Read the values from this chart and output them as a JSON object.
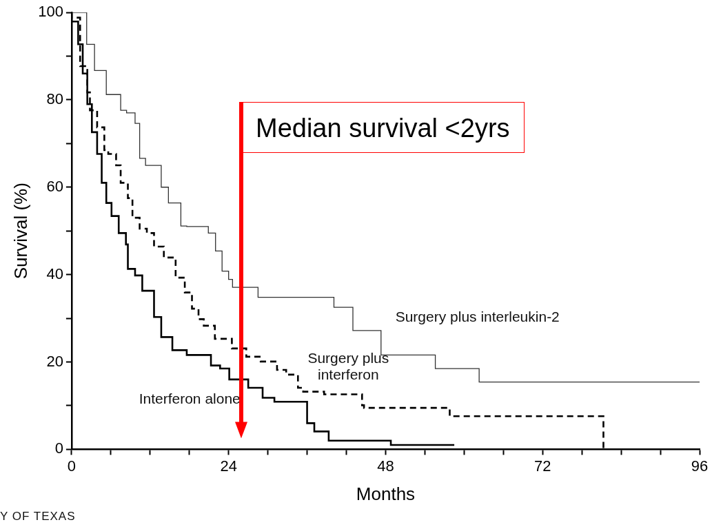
{
  "chart_data": {
    "type": "step",
    "xlabel": "Months",
    "ylabel": "Survival (%)",
    "xlim": [
      0,
      96
    ],
    "ylim": [
      0,
      100
    ],
    "xticks": [
      0,
      {
        "value": 6,
        "label": null
      },
      {
        "value": 12,
        "label": null
      },
      {
        "value": 18,
        "label": null
      },
      24,
      {
        "value": 30,
        "label": null
      },
      {
        "value": 36,
        "label": null
      },
      {
        "value": 42,
        "label": null
      },
      48,
      {
        "value": 54,
        "label": null
      },
      {
        "value": 60,
        "label": null
      },
      {
        "value": 66,
        "label": null
      },
      72,
      {
        "value": 78,
        "label": null
      },
      {
        "value": 84,
        "label": null
      },
      {
        "value": 90,
        "label": null
      },
      96
    ],
    "yticks": [
      0,
      {
        "value": 10,
        "label": null
      },
      20,
      {
        "value": 30,
        "label": null
      },
      40,
      {
        "value": 50,
        "label": null
      },
      60,
      {
        "value": 70,
        "label": null
      },
      80,
      {
        "value": 90,
        "label": null
      },
      100
    ],
    "grid": false,
    "legend": false,
    "marker": "none",
    "series": [
      {
        "name": "Surgery plus interleukin-2",
        "color": "#333333",
        "line_style": "solid",
        "x": [
          0,
          2.3,
          3.5,
          5.3,
          7.5,
          8.4,
          9.7,
          10.4,
          11.3,
          13.7,
          14.8,
          16.7,
          17.6,
          20.9,
          22,
          23,
          24,
          24.6,
          28.5,
          40.1,
          43,
          47.3,
          55.6,
          62.3,
          67.5,
          96
        ],
        "values": [
          100,
          100,
          92.7,
          86.7,
          81.2,
          77.6,
          77,
          74.6,
          66.6,
          65,
          60,
          56.4,
          51.1,
          51,
          49.5,
          45.4,
          40.8,
          38.9,
          37.1,
          34.8,
          32.5,
          27.2,
          21.6,
          18.5,
          15.4,
          15.4
        ]
      },
      {
        "name": "Surgery plus interferon",
        "color": "#000000",
        "line_style": "dashed",
        "x": [
          0,
          1.3,
          2.4,
          2.8,
          3.9,
          5,
          5.6,
          6.8,
          7.5,
          8.6,
          9.3,
          10.4,
          11.5,
          12.6,
          14.1,
          15.9,
          17.3,
          18.4,
          19.4,
          20.2,
          21.9,
          24.5,
          26.7,
          28.9,
          31.4,
          32.8,
          34.6,
          35.4,
          38.6,
          44.4,
          44.7,
          57.8,
          58.2,
          81.3,
          81.3
        ],
        "values": [
          100,
          98.8,
          87.7,
          81.7,
          77.6,
          73.7,
          68.5,
          67.6,
          65,
          61,
          57.5,
          53,
          50.5,
          49.5,
          46.4,
          43.9,
          39.3,
          35.9,
          32.2,
          29.8,
          28.3,
          25.3,
          23.1,
          21.2,
          20.1,
          18.2,
          17.1,
          14.1,
          13.2,
          12.6,
          10.1,
          9.5,
          7.6,
          7.6,
          0
        ]
      },
      {
        "name": "Interferon alone",
        "color": "#000000",
        "line_style": "solid",
        "x": [
          0,
          1,
          1.7,
          2.4,
          3.1,
          3.9,
          4.6,
          5.3,
          6.1,
          7.2,
          8.3,
          8.6,
          9.7,
          10.8,
          12.6,
          13.7,
          15.4,
          17.6,
          21.3,
          22.7,
          24.1,
          27,
          29.2,
          31,
          36,
          37.1,
          39.3,
          48.8,
          51.7,
          58.5
        ],
        "values": [
          100,
          97.9,
          92.7,
          86,
          79,
          72.6,
          67.6,
          61,
          56.4,
          53.4,
          49.5,
          46.9,
          41.3,
          39.8,
          36.3,
          30.3,
          25.7,
          22.7,
          21.6,
          19.2,
          18.5,
          16,
          14.1,
          11.8,
          10.9,
          6,
          4.1,
          2,
          1,
          1
        ]
      }
    ],
    "annotations": [
      "Median survival <2yrs",
      "Y OF TEXAS"
    ]
  }
}
